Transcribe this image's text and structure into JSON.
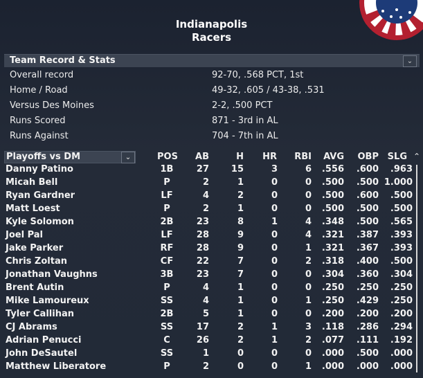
{
  "team": {
    "city": "Indianapolis",
    "name": "Racers"
  },
  "record_section": {
    "title": "Team Record & Stats",
    "toggle_icon": "chevron-down-icon"
  },
  "record": [
    {
      "label": "Overall record",
      "value": "92-70, .568 PCT, 1st"
    },
    {
      "label": "Home / Road",
      "value": "49-32, .605 / 43-38, .531"
    },
    {
      "label": "Versus Des Moines",
      "value": "2-2, .500 PCT"
    },
    {
      "label": "Runs Scored",
      "value": "871 - 3rd  in AL"
    },
    {
      "label": "Runs Against",
      "value": "704 - 7th  in AL"
    }
  ],
  "table": {
    "filter": "Playoffs vs DM",
    "headers": {
      "pos": "POS",
      "ab": "AB",
      "h": "H",
      "hr": "HR",
      "rbi": "RBI",
      "avg": "AVG",
      "obp": "OBP",
      "slg": "SLG"
    },
    "rows": [
      {
        "name": "Danny Patino",
        "pos": "1B",
        "ab": "27",
        "h": "15",
        "hr": "3",
        "rbi": "6",
        "avg": ".556",
        "obp": ".600",
        "slg": ".963"
      },
      {
        "name": "Micah Bell",
        "pos": "P",
        "ab": "2",
        "h": "1",
        "hr": "0",
        "rbi": "0",
        "avg": ".500",
        "obp": ".500",
        "slg": "1.000"
      },
      {
        "name": "Ryan Gardner",
        "pos": "LF",
        "ab": "4",
        "h": "2",
        "hr": "0",
        "rbi": "0",
        "avg": ".500",
        "obp": ".600",
        "slg": ".500"
      },
      {
        "name": "Matt Loest",
        "pos": "P",
        "ab": "2",
        "h": "1",
        "hr": "0",
        "rbi": "0",
        "avg": ".500",
        "obp": ".500",
        "slg": ".500"
      },
      {
        "name": "Kyle Solomon",
        "pos": "2B",
        "ab": "23",
        "h": "8",
        "hr": "1",
        "rbi": "4",
        "avg": ".348",
        "obp": ".500",
        "slg": ".565"
      },
      {
        "name": "Joel Pal",
        "pos": "LF",
        "ab": "28",
        "h": "9",
        "hr": "0",
        "rbi": "4",
        "avg": ".321",
        "obp": ".387",
        "slg": ".393"
      },
      {
        "name": "Jake Parker",
        "pos": "RF",
        "ab": "28",
        "h": "9",
        "hr": "0",
        "rbi": "1",
        "avg": ".321",
        "obp": ".367",
        "slg": ".393"
      },
      {
        "name": "Chris Zoltan",
        "pos": "CF",
        "ab": "22",
        "h": "7",
        "hr": "0",
        "rbi": "2",
        "avg": ".318",
        "obp": ".400",
        "slg": ".500"
      },
      {
        "name": "Jonathan Vaughns",
        "pos": "3B",
        "ab": "23",
        "h": "7",
        "hr": "0",
        "rbi": "0",
        "avg": ".304",
        "obp": ".360",
        "slg": ".304"
      },
      {
        "name": "Brent Autin",
        "pos": "P",
        "ab": "4",
        "h": "1",
        "hr": "0",
        "rbi": "0",
        "avg": ".250",
        "obp": ".250",
        "slg": ".250"
      },
      {
        "name": "Mike Lamoureux",
        "pos": "SS",
        "ab": "4",
        "h": "1",
        "hr": "0",
        "rbi": "1",
        "avg": ".250",
        "obp": ".429",
        "slg": ".250"
      },
      {
        "name": "Tyler Callihan",
        "pos": "2B",
        "ab": "5",
        "h": "1",
        "hr": "0",
        "rbi": "0",
        "avg": ".200",
        "obp": ".200",
        "slg": ".200"
      },
      {
        "name": "CJ Abrams",
        "pos": "SS",
        "ab": "17",
        "h": "2",
        "hr": "1",
        "rbi": "3",
        "avg": ".118",
        "obp": ".286",
        "slg": ".294"
      },
      {
        "name": "Adrian Penucci",
        "pos": "C",
        "ab": "26",
        "h": "2",
        "hr": "1",
        "rbi": "2",
        "avg": ".077",
        "obp": ".111",
        "slg": ".192"
      },
      {
        "name": "John DeSautel",
        "pos": "SS",
        "ab": "1",
        "h": "0",
        "hr": "0",
        "rbi": "0",
        "avg": ".000",
        "obp": ".500",
        "slg": ".000"
      },
      {
        "name": "Matthew Liberatore",
        "pos": "P",
        "ab": "2",
        "h": "0",
        "hr": "0",
        "rbi": "1",
        "avg": ".000",
        "obp": ".000",
        "slg": ".000"
      }
    ]
  },
  "colors": {
    "background": "#1f2633",
    "bar": "#3c4452",
    "bunting_red": "#b32030",
    "bunting_blue": "#1d3b78"
  }
}
